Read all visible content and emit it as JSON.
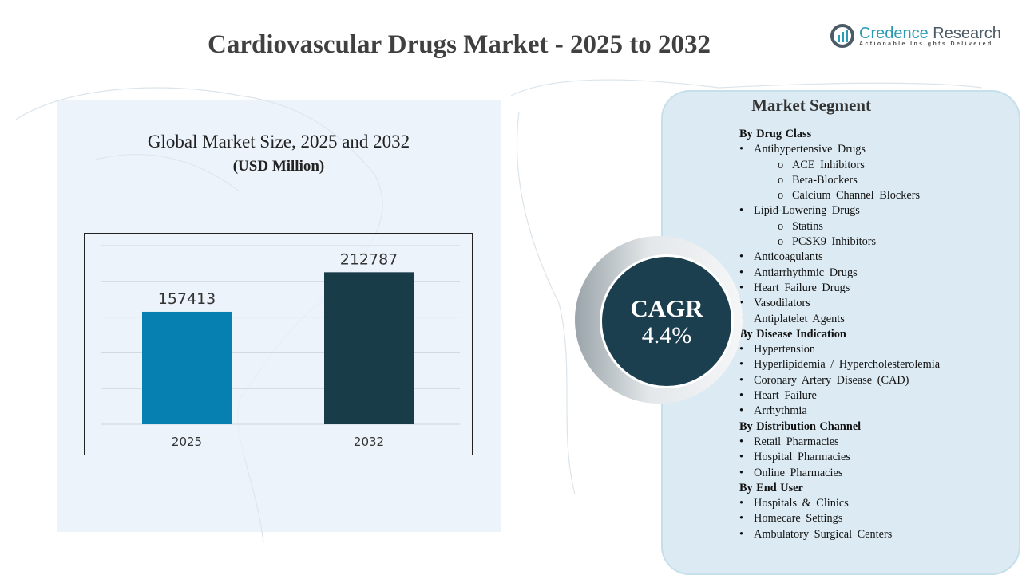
{
  "title": "Cardiovascular Drugs Market - 2025 to 2032",
  "logo": {
    "name_part1": "Credence",
    "name_part2": " Research",
    "tagline": "Actionable Insights Delivered"
  },
  "colors": {
    "bar_2025": "#0580b1",
    "bar_2032": "#193c49",
    "cagr_circle": "#1b3f4f",
    "panel": "#dcebf3"
  },
  "chart_data": {
    "type": "bar",
    "title": "Global Market Size, 2025 and 2032",
    "subtitle": "(USD Million)",
    "categories": [
      "2025",
      "2032"
    ],
    "values": [
      157413,
      212787
    ],
    "data_labels": [
      "157413",
      "212787"
    ],
    "ylim": [
      0,
      250000
    ],
    "grid": true,
    "xlabel": "",
    "ylabel": ""
  },
  "cagr": {
    "label": "CAGR",
    "value": "4.4%"
  },
  "segment": {
    "title": "Market Segment",
    "rows": [
      {
        "level": "h",
        "text": "By Drug Class"
      },
      {
        "level": "b",
        "text": "Antihypertensive Drugs"
      },
      {
        "level": "s",
        "text": "ACE Inhibitors"
      },
      {
        "level": "s",
        "text": "Beta-Blockers"
      },
      {
        "level": "s",
        "text": "Calcium Channel Blockers"
      },
      {
        "level": "b",
        "text": "Lipid-Lowering Drugs"
      },
      {
        "level": "s",
        "text": "Statins"
      },
      {
        "level": "s",
        "text": "PCSK9 Inhibitors"
      },
      {
        "level": "b",
        "text": "Anticoagulants"
      },
      {
        "level": "b",
        "text": "Antiarrhythmic Drugs"
      },
      {
        "level": "b",
        "text": "Heart Failure Drugs"
      },
      {
        "level": "b",
        "text": "Vasodilators"
      },
      {
        "level": "b",
        "text": "Antiplatelet Agents"
      },
      {
        "level": "h",
        "text": "By Disease Indication"
      },
      {
        "level": "b",
        "text": "Hypertension"
      },
      {
        "level": "b",
        "text": "Hyperlipidemia / Hypercholesterolemia"
      },
      {
        "level": "b",
        "text": "Coronary Artery Disease (CAD)"
      },
      {
        "level": "b",
        "text": "Heart Failure"
      },
      {
        "level": "b",
        "text": "Arrhythmia"
      },
      {
        "level": "h",
        "text": "By Distribution Channel"
      },
      {
        "level": "b",
        "text": "Retail Pharmacies"
      },
      {
        "level": "b",
        "text": "Hospital Pharmacies"
      },
      {
        "level": "b",
        "text": "Online Pharmacies"
      },
      {
        "level": "h",
        "text": "By End User"
      },
      {
        "level": "b",
        "text": "Hospitals & Clinics"
      },
      {
        "level": "b",
        "text": "Homecare Settings"
      },
      {
        "level": "b",
        "text": "Ambulatory Surgical Centers"
      }
    ]
  }
}
